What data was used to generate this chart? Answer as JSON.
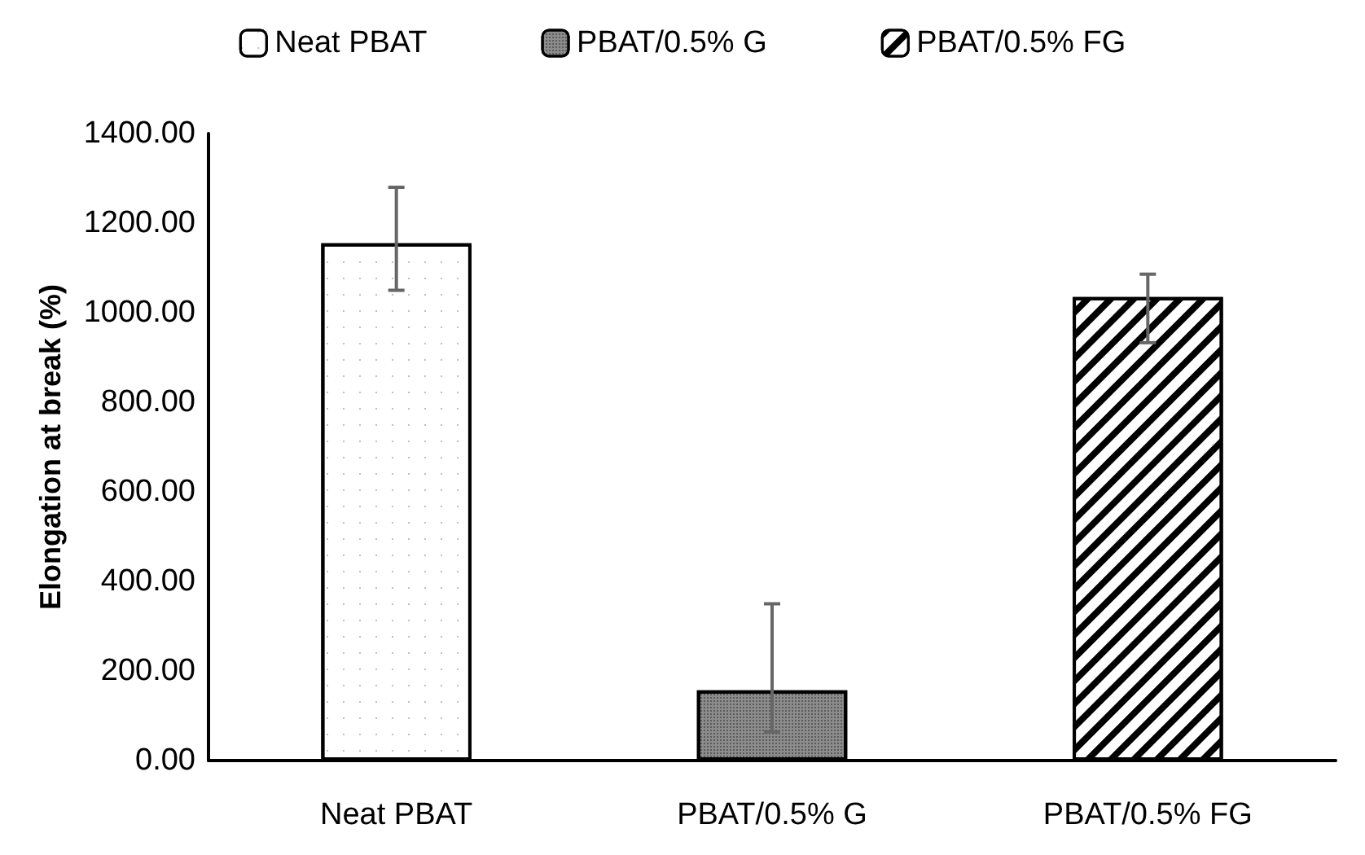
{
  "chart_data": {
    "type": "bar",
    "ylabel": "Elongation at break (%)",
    "categories": [
      "Neat PBAT",
      "PBAT/0.5% G",
      "PBAT/0.5% FG"
    ],
    "series": [
      {
        "name": "Neat PBAT",
        "color": "#ffffff",
        "values": [
          1155,
          null,
          null
        ],
        "errors": [
          [
            1050,
            1280
          ],
          null,
          null
        ]
      },
      {
        "name": "PBAT/0.5% G",
        "color": "#8c8c8c",
        "values": [
          null,
          157,
          null
        ],
        "errors": [
          null,
          [
            64,
            350
          ],
          null
        ]
      },
      {
        "name": "PBAT/0.5% FG",
        "color": "#ffffff",
        "values": [
          null,
          null,
          1035
        ],
        "errors": [
          null,
          null,
          [
            933,
            1086
          ]
        ]
      }
    ],
    "ylim": [
      0,
      1400
    ],
    "yticks": [
      {
        "value": 0,
        "label": "0.00"
      },
      {
        "value": 200,
        "label": "200.00"
      },
      {
        "value": 400,
        "label": "400.00"
      },
      {
        "value": 600,
        "label": "600.00"
      },
      {
        "value": 800,
        "label": "800.00"
      },
      {
        "value": 1000,
        "label": "1000.00"
      },
      {
        "value": 1200,
        "label": "1200.00"
      },
      {
        "value": 1400,
        "label": "1400.00"
      }
    ],
    "grid": false,
    "legend": "top"
  }
}
